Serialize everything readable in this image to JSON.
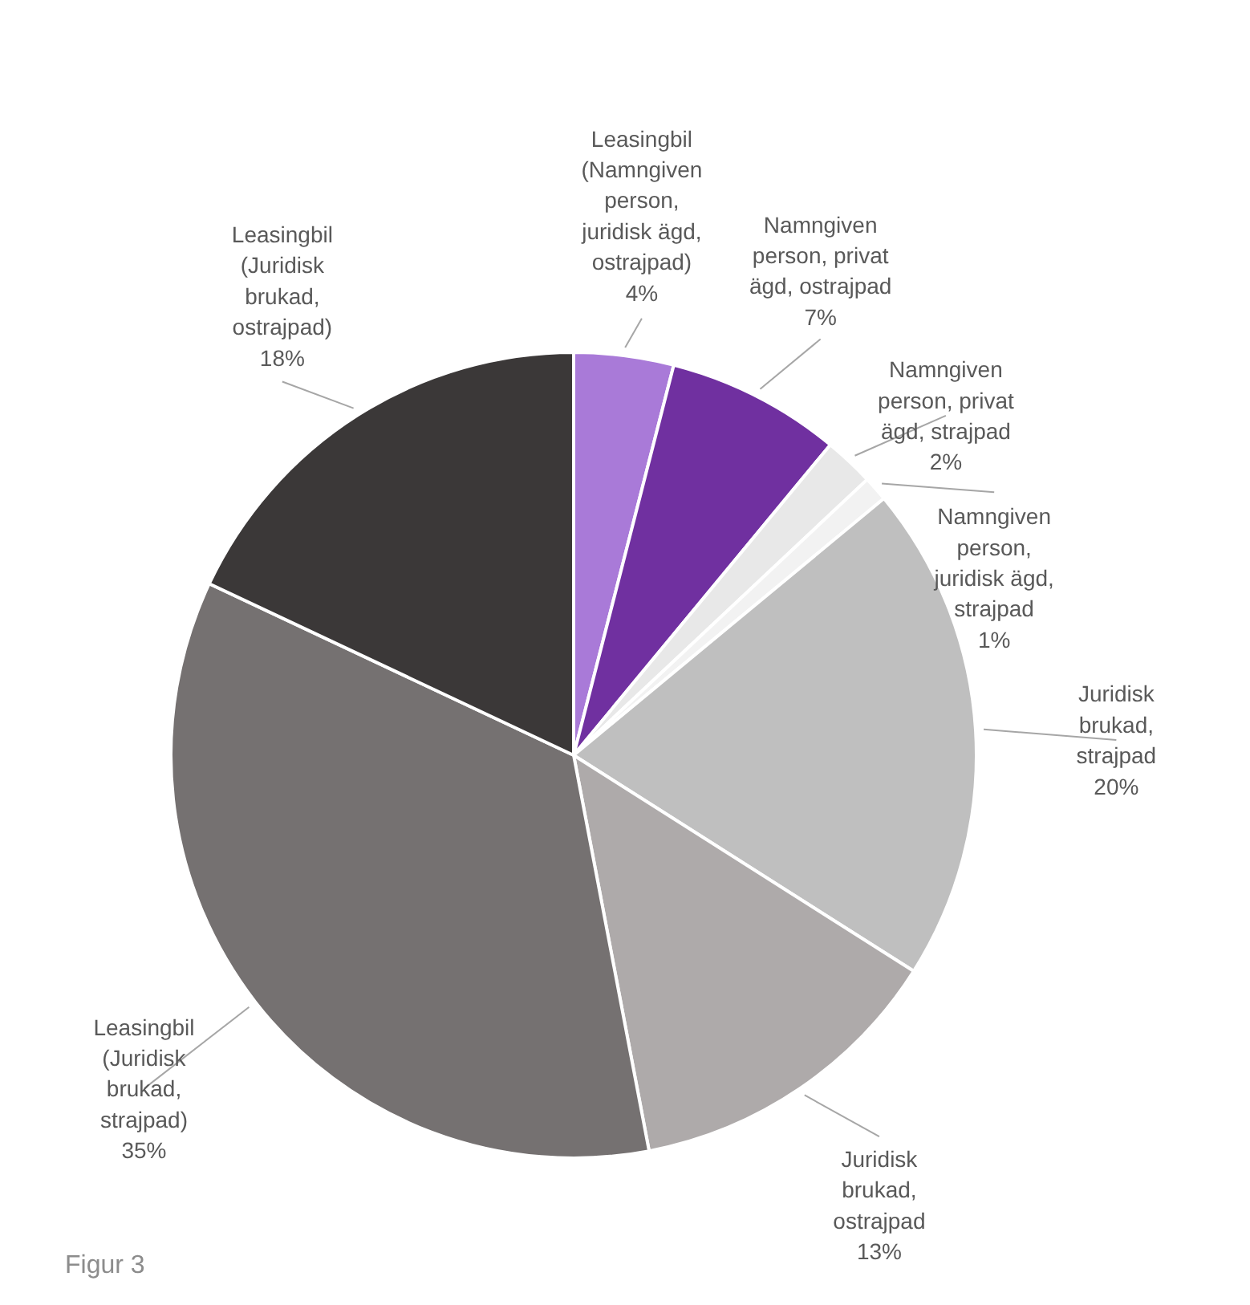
{
  "chart_data": {
    "type": "pie",
    "categories": [
      "Leasingbil\n(Namngiven\nperson,\njuridisk ägd,\nostrajpad)",
      "Namngiven\nperson, privat\nägd, ostrajpad",
      "Namngiven\nperson, privat\nägd, strajpad",
      "Namngiven\nperson,\njuridisk ägd,\nstrajpad",
      "Juridisk\nbrukad,\nstrajpad",
      "Juridisk\nbrukad,\nostrajpad",
      "Leasingbil\n(Juridisk\nbrukad,\nstrajpad)",
      "Leasingbil\n(Juridisk\nbrukad,\nostrajpad)"
    ],
    "values": [
      4,
      7,
      2,
      1,
      20,
      13,
      35,
      18
    ],
    "colors": [
      "#a97ad8",
      "#7030a0",
      "#e8e8e8",
      "#f2f2f2",
      "#bfbfbf",
      "#aeaaaa",
      "#757171",
      "#3b3838"
    ],
    "value_labels": [
      "4%",
      "7%",
      "2%",
      "1%",
      "20%",
      "13%",
      "35%",
      "18%"
    ],
    "annotations": [
      "Figur 3"
    ]
  }
}
